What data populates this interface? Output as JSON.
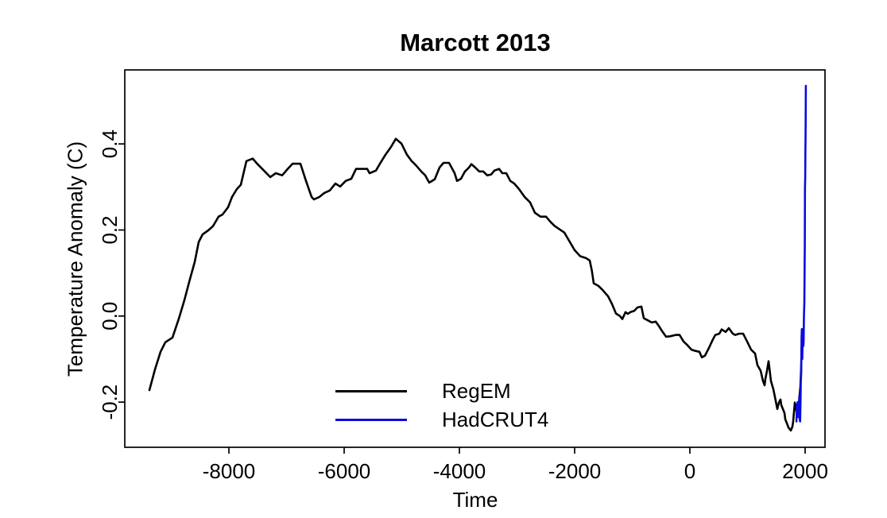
{
  "title": "Marcott 2013",
  "axes": {
    "x_label": "Time",
    "y_label": "Temperature Anomaly (C)"
  },
  "legend": {
    "items": [
      {
        "label": "RegEM",
        "color": "#000000"
      },
      {
        "label": "HadCRUT4",
        "color": "#0b0be0"
      }
    ]
  },
  "chart_data": {
    "type": "line",
    "title": "Marcott 2013",
    "xlabel": "Time",
    "ylabel": "Temperature Anomaly (C)",
    "grid": false,
    "legend_position": "inside-bottom-center",
    "xlim": [
      -9807,
      2345
    ],
    "ylim": [
      -0.305,
      0.572
    ],
    "x_ticks": [
      -8000,
      -6000,
      -4000,
      -2000,
      0,
      2000
    ],
    "x_tick_labels": [
      "-8000",
      "-6000",
      "-4000",
      "-2000",
      "0",
      "2000"
    ],
    "y_ticks": [
      -0.2,
      0.0,
      0.2,
      0.4
    ],
    "y_tick_labels": [
      "-0.2",
      "0.0",
      "0.2",
      "0.4"
    ],
    "series": [
      {
        "name": "RegEM",
        "color": "#000000",
        "points": [
          [
            -9379,
            -0.172
          ],
          [
            -9283,
            -0.124
          ],
          [
            -9186,
            -0.083
          ],
          [
            -9103,
            -0.061
          ],
          [
            -8979,
            -0.05
          ],
          [
            -8869,
            -0.006
          ],
          [
            -8772,
            0.037
          ],
          [
            -8690,
            0.079
          ],
          [
            -8593,
            0.126
          ],
          [
            -8524,
            0.172
          ],
          [
            -8455,
            0.19
          ],
          [
            -8359,
            0.199
          ],
          [
            -8276,
            0.209
          ],
          [
            -8179,
            0.231
          ],
          [
            -8110,
            0.236
          ],
          [
            -8014,
            0.253
          ],
          [
            -7945,
            0.277
          ],
          [
            -7862,
            0.295
          ],
          [
            -7793,
            0.305
          ],
          [
            -7697,
            0.36
          ],
          [
            -7586,
            0.366
          ],
          [
            -7503,
            0.353
          ],
          [
            -7393,
            0.338
          ],
          [
            -7283,
            0.323
          ],
          [
            -7186,
            0.332
          ],
          [
            -7076,
            0.327
          ],
          [
            -6979,
            0.342
          ],
          [
            -6897,
            0.354
          ],
          [
            -6759,
            0.354
          ],
          [
            -6662,
            0.314
          ],
          [
            -6566,
            0.277
          ],
          [
            -6524,
            0.271
          ],
          [
            -6428,
            0.277
          ],
          [
            -6345,
            0.286
          ],
          [
            -6248,
            0.292
          ],
          [
            -6152,
            0.308
          ],
          [
            -6069,
            0.301
          ],
          [
            -5972,
            0.314
          ],
          [
            -5876,
            0.319
          ],
          [
            -5793,
            0.342
          ],
          [
            -5600,
            0.342
          ],
          [
            -5559,
            0.332
          ],
          [
            -5448,
            0.338
          ],
          [
            -5379,
            0.354
          ],
          [
            -5283,
            0.375
          ],
          [
            -5186,
            0.393
          ],
          [
            -5103,
            0.412
          ],
          [
            -5007,
            0.401
          ],
          [
            -4910,
            0.375
          ],
          [
            -4828,
            0.36
          ],
          [
            -4759,
            0.351
          ],
          [
            -4662,
            0.336
          ],
          [
            -4593,
            0.327
          ],
          [
            -4524,
            0.31
          ],
          [
            -4428,
            0.318
          ],
          [
            -4345,
            0.345
          ],
          [
            -4276,
            0.356
          ],
          [
            -4179,
            0.356
          ],
          [
            -4083,
            0.332
          ],
          [
            -4041,
            0.314
          ],
          [
            -3972,
            0.319
          ],
          [
            -3903,
            0.336
          ],
          [
            -3834,
            0.345
          ],
          [
            -3793,
            0.353
          ],
          [
            -3724,
            0.345
          ],
          [
            -3655,
            0.336
          ],
          [
            -3586,
            0.336
          ],
          [
            -3517,
            0.327
          ],
          [
            -3448,
            0.329
          ],
          [
            -3393,
            0.338
          ],
          [
            -3310,
            0.342
          ],
          [
            -3255,
            0.332
          ],
          [
            -3186,
            0.332
          ],
          [
            -3117,
            0.314
          ],
          [
            -3048,
            0.308
          ],
          [
            -2966,
            0.295
          ],
          [
            -2869,
            0.277
          ],
          [
            -2772,
            0.264
          ],
          [
            -2690,
            0.24
          ],
          [
            -2593,
            0.231
          ],
          [
            -2497,
            0.231
          ],
          [
            -2414,
            0.218
          ],
          [
            -2345,
            0.209
          ],
          [
            -2276,
            0.203
          ],
          [
            -2179,
            0.194
          ],
          [
            -2083,
            0.172
          ],
          [
            -2000,
            0.153
          ],
          [
            -1903,
            0.139
          ],
          [
            -1807,
            0.135
          ],
          [
            -1738,
            0.129
          ],
          [
            -1700,
            0.105
          ],
          [
            -1669,
            0.076
          ],
          [
            -1586,
            0.07
          ],
          [
            -1517,
            0.061
          ],
          [
            -1421,
            0.046
          ],
          [
            -1352,
            0.028
          ],
          [
            -1283,
            0.006
          ],
          [
            -1214,
            0.0
          ],
          [
            -1172,
            -0.007
          ],
          [
            -1117,
            0.009
          ],
          [
            -1076,
            0.005
          ],
          [
            -1034,
            0.009
          ],
          [
            -966,
            0.012
          ],
          [
            -910,
            0.02
          ],
          [
            -841,
            0.022
          ],
          [
            -800,
            -0.005
          ],
          [
            -731,
            -0.01
          ],
          [
            -662,
            -0.015
          ],
          [
            -593,
            -0.013
          ],
          [
            -524,
            -0.026
          ],
          [
            -483,
            -0.035
          ],
          [
            -414,
            -0.048
          ],
          [
            -345,
            -0.047
          ],
          [
            -248,
            -0.044
          ],
          [
            -179,
            -0.044
          ],
          [
            -110,
            -0.059
          ],
          [
            -41,
            -0.068
          ],
          [
            28,
            -0.078
          ],
          [
            97,
            -0.081
          ],
          [
            166,
            -0.083
          ],
          [
            207,
            -0.096
          ],
          [
            262,
            -0.092
          ],
          [
            331,
            -0.074
          ],
          [
            400,
            -0.054
          ],
          [
            441,
            -0.044
          ],
          [
            510,
            -0.041
          ],
          [
            552,
            -0.031
          ],
          [
            621,
            -0.037
          ],
          [
            676,
            -0.028
          ],
          [
            745,
            -0.041
          ],
          [
            786,
            -0.044
          ],
          [
            855,
            -0.041
          ],
          [
            924,
            -0.041
          ],
          [
            993,
            -0.059
          ],
          [
            1062,
            -0.078
          ],
          [
            1131,
            -0.087
          ],
          [
            1172,
            -0.114
          ],
          [
            1228,
            -0.127
          ],
          [
            1269,
            -0.151
          ],
          [
            1297,
            -0.161
          ],
          [
            1310,
            -0.146
          ],
          [
            1338,
            -0.127
          ],
          [
            1366,
            -0.105
          ],
          [
            1379,
            -0.12
          ],
          [
            1407,
            -0.151
          ],
          [
            1448,
            -0.17
          ],
          [
            1476,
            -0.188
          ],
          [
            1503,
            -0.207
          ],
          [
            1517,
            -0.216
          ],
          [
            1545,
            -0.201
          ],
          [
            1572,
            -0.194
          ],
          [
            1586,
            -0.207
          ],
          [
            1641,
            -0.225
          ],
          [
            1655,
            -0.24
          ],
          [
            1683,
            -0.249
          ],
          [
            1710,
            -0.259
          ],
          [
            1752,
            -0.266
          ],
          [
            1779,
            -0.257
          ],
          [
            1793,
            -0.244
          ],
          [
            1821,
            -0.201
          ],
          [
            1848,
            -0.22
          ],
          [
            1862,
            -0.231
          ],
          [
            1890,
            -0.207
          ],
          [
            1917,
            -0.164
          ],
          [
            1931,
            -0.12
          ],
          [
            1940,
            -0.072
          ]
        ]
      },
      {
        "name": "HadCRUT4",
        "color": "#0b0be0",
        "points": [
          [
            1850,
            -0.245
          ],
          [
            1857,
            -0.205
          ],
          [
            1864,
            -0.235
          ],
          [
            1871,
            -0.2
          ],
          [
            1878,
            -0.225
          ],
          [
            1885,
            -0.235
          ],
          [
            1892,
            -0.22
          ],
          [
            1900,
            -0.185
          ],
          [
            1907,
            -0.24
          ],
          [
            1913,
            -0.245
          ],
          [
            1920,
            -0.2
          ],
          [
            1926,
            -0.15
          ],
          [
            1932,
            -0.13
          ],
          [
            1938,
            -0.05
          ],
          [
            1944,
            -0.03
          ],
          [
            1950,
            -0.1
          ],
          [
            1956,
            -0.06
          ],
          [
            1962,
            -0.05
          ],
          [
            1968,
            -0.07
          ],
          [
            1974,
            -0.06
          ],
          [
            1980,
            0.0
          ],
          [
            1986,
            0.03
          ],
          [
            1991,
            0.1
          ],
          [
            1995,
            0.17
          ],
          [
            1998,
            0.3
          ],
          [
            2001,
            0.32
          ],
          [
            2004,
            0.38
          ],
          [
            2007,
            0.41
          ],
          [
            2010,
            0.46
          ],
          [
            2013,
            0.535
          ]
        ]
      }
    ]
  }
}
